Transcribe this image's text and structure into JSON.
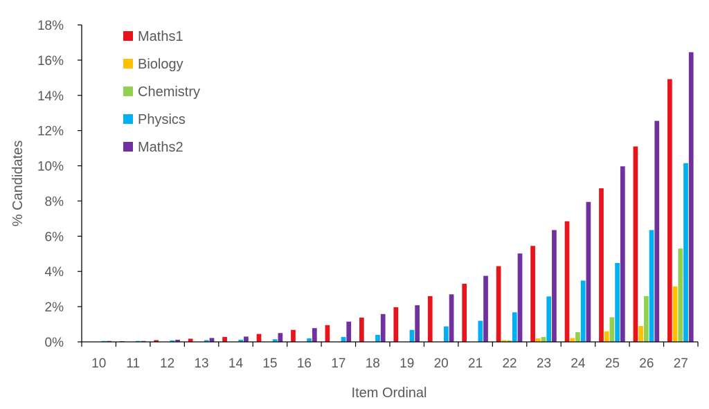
{
  "chart_data": {
    "type": "bar",
    "title": "",
    "xlabel": "Item Ordinal",
    "ylabel": "% Candidates",
    "ylim": [
      0,
      18
    ],
    "ytick_step": 2,
    "ytick_suffix": "%",
    "grid": false,
    "legend_position": "top-left",
    "categories": [
      "10",
      "11",
      "12",
      "13",
      "14",
      "15",
      "16",
      "17",
      "18",
      "19",
      "20",
      "21",
      "22",
      "23",
      "24",
      "25",
      "26",
      "27"
    ],
    "series": [
      {
        "name": "Maths1",
        "color": "#e8141b",
        "values": [
          0.0,
          0.02,
          0.1,
          0.18,
          0.28,
          0.45,
          0.68,
          0.95,
          1.38,
          1.97,
          2.6,
          3.3,
          4.3,
          5.45,
          6.85,
          8.72,
          11.1,
          14.92
        ]
      },
      {
        "name": "Biology",
        "color": "#ffc000",
        "values": [
          0.0,
          0.0,
          0.0,
          0.0,
          0.0,
          0.0,
          0.0,
          0.0,
          0.0,
          0.0,
          0.0,
          0.0,
          0.1,
          0.2,
          0.22,
          0.6,
          0.9,
          3.15
        ]
      },
      {
        "name": "Chemistry",
        "color": "#92d050",
        "values": [
          0.0,
          0.0,
          0.0,
          0.0,
          0.0,
          0.0,
          0.0,
          0.0,
          0.0,
          0.0,
          0.0,
          0.0,
          0.08,
          0.28,
          0.55,
          1.4,
          2.6,
          5.3
        ]
      },
      {
        "name": "Physics",
        "color": "#00b0f0",
        "values": [
          0.05,
          0.05,
          0.08,
          0.1,
          0.12,
          0.15,
          0.2,
          0.28,
          0.4,
          0.68,
          0.88,
          1.2,
          1.68,
          2.58,
          3.48,
          4.48,
          6.35,
          10.15
        ]
      },
      {
        "name": "Maths2",
        "color": "#7030a0",
        "values": [
          0.05,
          0.05,
          0.12,
          0.22,
          0.3,
          0.5,
          0.78,
          1.15,
          1.58,
          2.08,
          2.7,
          3.75,
          5.02,
          6.35,
          7.95,
          9.97,
          12.55,
          16.45
        ]
      }
    ]
  }
}
